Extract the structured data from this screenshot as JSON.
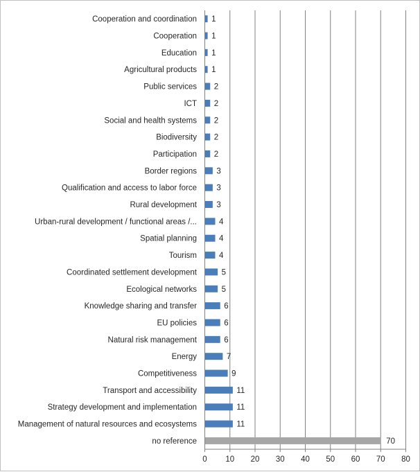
{
  "chart_data": {
    "type": "bar",
    "orientation": "horizontal",
    "title": "",
    "xlabel": "",
    "ylabel": "",
    "xlim": [
      0,
      80
    ],
    "xticks": [
      0,
      10,
      20,
      30,
      40,
      50,
      60,
      70,
      80
    ],
    "grid": true,
    "legend": "none",
    "colors": {
      "bar": "#4a7ebb",
      "highlight": "#a6a6a6",
      "grid": "#808080"
    },
    "categories": [
      "Cooperation and coordination",
      "Cooperation",
      "Education",
      "Agricultural products",
      "Public services",
      "ICT",
      "Social and health systems",
      "Biodiversity",
      "Participation",
      "Border regions",
      "Qualification and access to labor force",
      "Rural development",
      "Urban-rural development / functional areas /...",
      "Spatial planning",
      "Tourism",
      "Coordinated settlement development",
      "Ecological networks",
      "Knowledge sharing and transfer",
      "EU policies",
      "Natural risk management",
      "Energy",
      "Competitiveness",
      "Transport and accessibility",
      "Strategy development and implementation",
      "Management of natural resources and ecosystems",
      "no reference"
    ],
    "values": [
      1,
      1,
      1,
      1,
      2,
      2,
      2,
      2,
      2,
      3,
      3,
      3,
      4,
      4,
      4,
      5,
      5,
      6,
      6,
      6,
      7,
      9,
      11,
      11,
      11,
      70
    ],
    "highlight_category": "no reference"
  }
}
